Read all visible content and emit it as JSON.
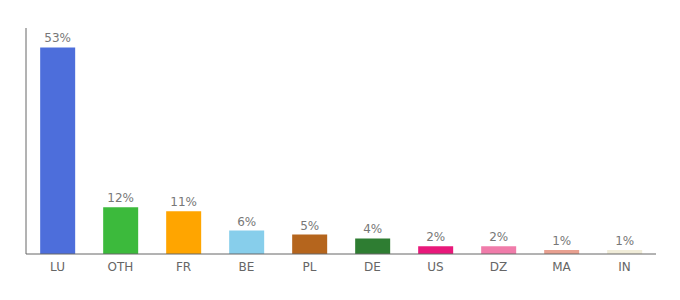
{
  "chart_data": {
    "type": "bar",
    "categories": [
      "LU",
      "OTH",
      "FR",
      "BE",
      "PL",
      "DE",
      "US",
      "DZ",
      "MA",
      "IN"
    ],
    "values": [
      53,
      12,
      11,
      6,
      5,
      4,
      2,
      2,
      1,
      1
    ],
    "value_labels": [
      "53%",
      "12%",
      "11%",
      "6%",
      "5%",
      "4%",
      "2%",
      "2%",
      "1%",
      "1%"
    ],
    "colors": [
      "#4d6edb",
      "#3cba3c",
      "#ffa500",
      "#87ceeb",
      "#b5651d",
      "#2e7d32",
      "#e8187a",
      "#f07caa",
      "#e8a090",
      "#f0ecd8"
    ],
    "ylim": [
      0,
      58
    ],
    "tick_labels": "x",
    "data_labels": true,
    "grid": false
  }
}
